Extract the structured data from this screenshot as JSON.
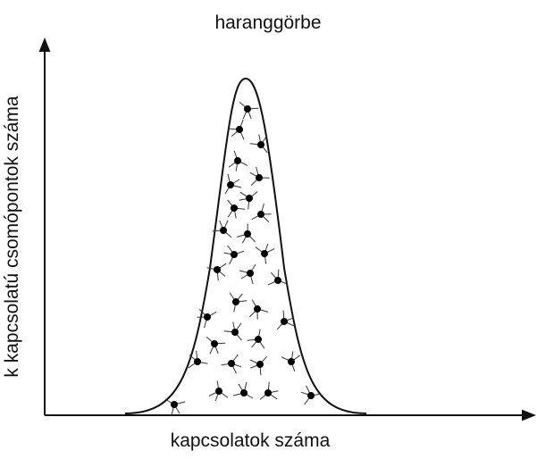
{
  "title": "haranggörbe",
  "y_axis_label": "k kapcsolatú csomópontok száma",
  "x_axis_label": "kapcsolatok száma"
}
